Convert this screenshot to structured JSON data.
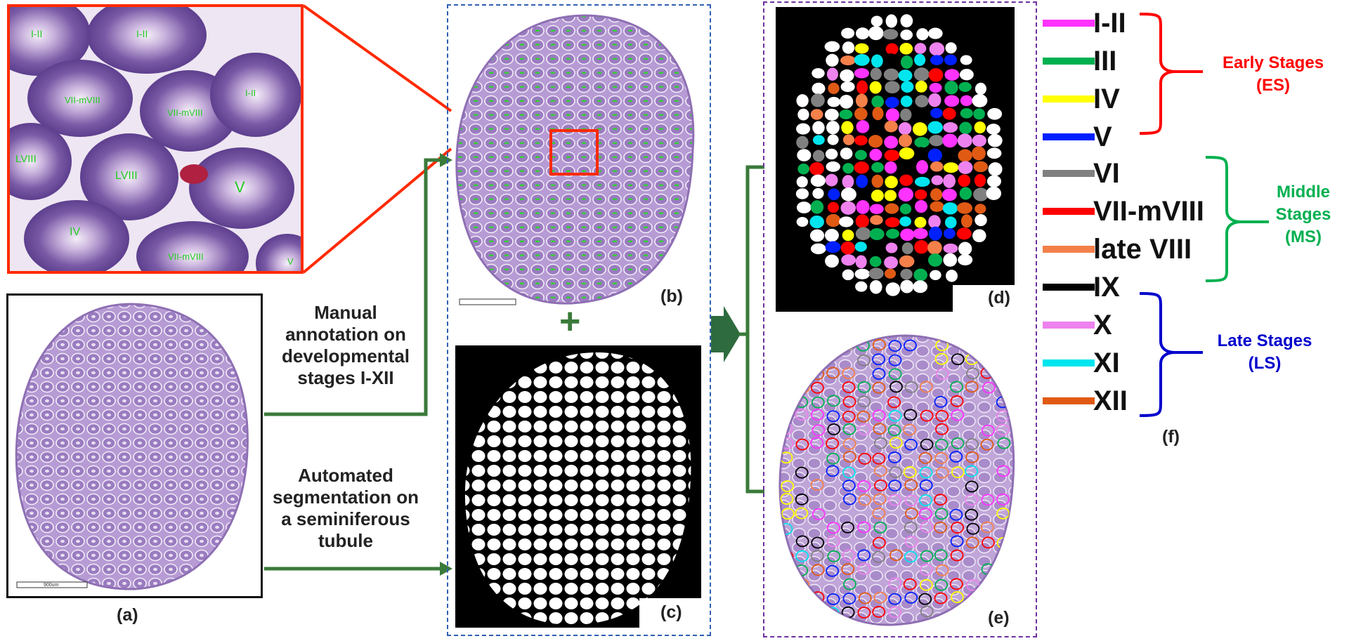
{
  "steps": {
    "manual": [
      "Manual",
      "annotation on",
      "developmental",
      "stages I-XII"
    ],
    "automated": [
      "Automated",
      "segmentation on",
      "a seminiferous",
      "tubule"
    ]
  },
  "panels": {
    "a": "(a)",
    "b": "(b)",
    "c": "(c)",
    "d": "(d)",
    "e": "(e)",
    "f": "(f)"
  },
  "zoom_tubule_labels": [
    "I-II",
    "I-II",
    "VII-mVIII",
    "VII-mVIII",
    "I-II",
    "LVIII",
    "LVIII",
    "V",
    "IV",
    "VII-mVIII",
    "V"
  ],
  "plus_sign": "+",
  "scale_bar_text": "900um",
  "legend": [
    {
      "label": "I-II",
      "color": "#ff33ff"
    },
    {
      "label": "III",
      "color": "#00b050"
    },
    {
      "label": "IV",
      "color": "#ffff00"
    },
    {
      "label": "V",
      "color": "#0020ff"
    },
    {
      "label": "VI",
      "color": "#808080"
    },
    {
      "label": "VII-mVIII",
      "color": "#ff0000"
    },
    {
      "label": "late VIII",
      "color": "#f4804a"
    },
    {
      "label": "IX",
      "color": "#000000"
    },
    {
      "label": "X",
      "color": "#ee82ee"
    },
    {
      "label": "XI",
      "color": "#00e5ee"
    },
    {
      "label": "XII",
      "color": "#e05a14"
    }
  ],
  "groups": {
    "early": {
      "line1": "Early Stages",
      "line2": "(ES)",
      "color": "#ff0000"
    },
    "middle": {
      "line1": "Middle",
      "line2": "Stages",
      "line3": "(MS)",
      "color": "#00b050"
    },
    "late": {
      "line1": "Late Stages",
      "line2": "(LS)",
      "color": "#0000cc"
    }
  },
  "colors": {
    "tissue": "#a68ac8",
    "zoom_border": "#ff2a00",
    "arrow_green": "#3a7a3a",
    "box_blue": "#2f5fb3",
    "box_purple": "#7030a0"
  }
}
